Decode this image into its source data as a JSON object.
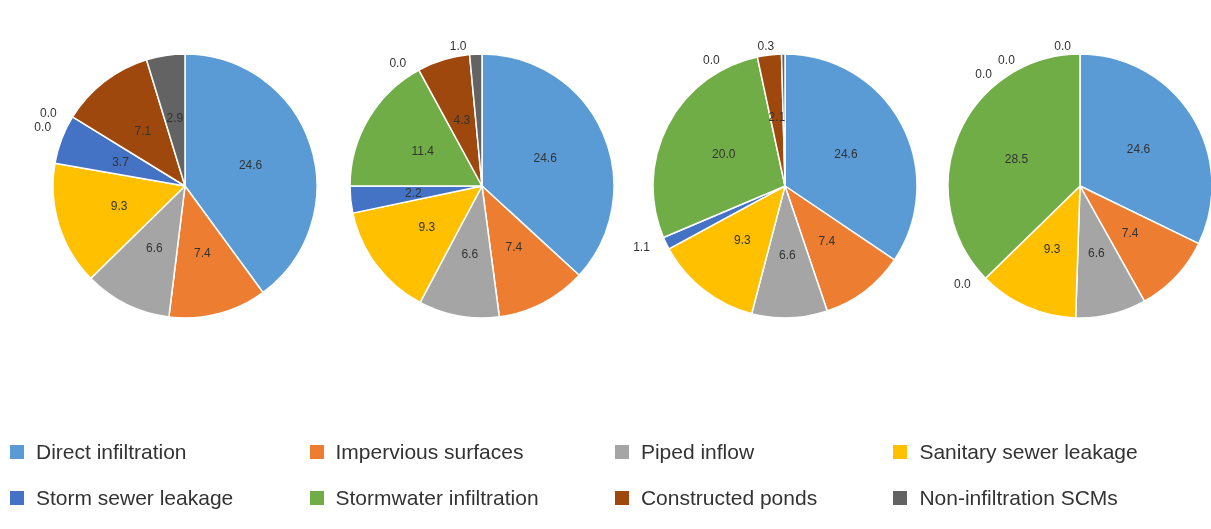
{
  "chart_data": [
    {
      "type": "pie",
      "categories": [
        "Direct infiltration",
        "Impervious surfaces",
        "Piped inflow",
        "Sanitary sewer leakage",
        "Storm sewer leakage",
        "Stormwater infiltration",
        null,
        "Constructed ponds",
        "Non-infiltration SCMs"
      ],
      "values": [
        24.6,
        7.4,
        6.6,
        9.3,
        3.7,
        0.0,
        0.0,
        7.1,
        2.9
      ],
      "value_labels": [
        "24.6",
        "7.4",
        "6.6",
        "9.3",
        "3.7",
        "0.0",
        "0.0",
        "7.1",
        "2.9"
      ],
      "colors": [
        "#5b9bd5",
        "#ed7d31",
        "#a5a5a5",
        "#ffc000",
        "#4472c4",
        "#70ad47",
        "#264478",
        "#9e480e",
        "#636363"
      ],
      "legend": "bottom"
    },
    {
      "type": "pie",
      "categories": [
        null,
        null,
        null,
        null,
        null,
        null,
        null,
        null,
        null
      ],
      "values": [
        24.6,
        7.4,
        6.6,
        9.3,
        2.2,
        11.4,
        0.0,
        4.3,
        1.0
      ],
      "value_labels": [
        "24.6",
        "7.4",
        "6.6",
        "9.3",
        "2.2",
        "11.4",
        "0.0",
        "4.3",
        "1.0"
      ],
      "colors": [
        "#5b9bd5",
        "#ed7d31",
        "#a5a5a5",
        "#ffc000",
        "#4472c4",
        "#70ad47",
        "#264478",
        "#9e480e",
        "#636363"
      ]
    },
    {
      "type": "pie",
      "categories": [
        null,
        null,
        null,
        null,
        null,
        null,
        null,
        null,
        null
      ],
      "values": [
        24.6,
        7.4,
        6.6,
        9.3,
        1.1,
        20.0,
        0.0,
        2.1,
        0.3
      ],
      "value_labels": [
        "24.6",
        "7.4",
        "6.6",
        "9.3",
        "1.1",
        "20.0",
        "0.0",
        "2.1",
        "0.3"
      ],
      "colors": [
        "#5b9bd5",
        "#ed7d31",
        "#a5a5a5",
        "#ffc000",
        "#4472c4",
        "#70ad47",
        "#264478",
        "#9e480e",
        "#636363"
      ]
    },
    {
      "type": "pie",
      "categories": [
        null,
        null,
        null,
        null,
        null,
        null,
        null,
        null,
        null
      ],
      "values": [
        24.6,
        7.4,
        6.6,
        9.3,
        0.0,
        28.5,
        0.0,
        0.0,
        0.0
      ],
      "value_labels": [
        "24.6",
        "7.4",
        "6.6",
        "9.3",
        "0.0",
        "28.5",
        "0.0",
        "0.0",
        "0.0"
      ],
      "colors": [
        "#5b9bd5",
        "#ed7d31",
        "#a5a5a5",
        "#ffc000",
        "#4472c4",
        "#70ad47",
        "#264478",
        "#9e480e",
        "#636363"
      ]
    }
  ]
}
